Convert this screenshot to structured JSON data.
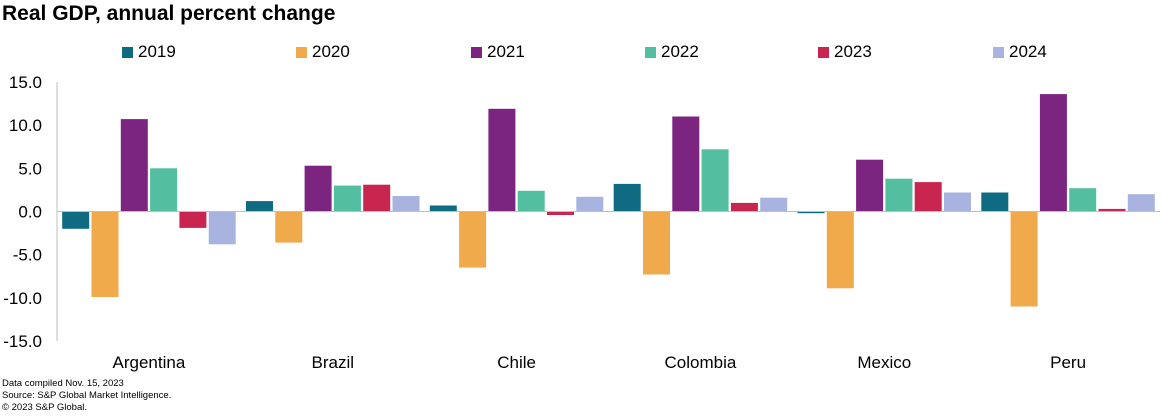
{
  "title": "Real GDP, annual percent change",
  "notes": [
    "Data compiled Nov. 15, 2023",
    "Source: S&P Global Market Intelligence.",
    "© 2023 S&P Global."
  ],
  "chart_data": {
    "type": "bar",
    "title": "Real GDP, annual percent change",
    "categories": [
      "Argentina",
      "Brazil",
      "Chile",
      "Colombia",
      "Mexico",
      "Peru"
    ],
    "ylim": [
      -15,
      15
    ],
    "yticks": [
      15.0,
      10.0,
      5.0,
      0.0,
      -5.0,
      -10.0,
      -15.0
    ],
    "ytick_labels": [
      "15.0",
      "10.0",
      "5.0",
      "0.0",
      "-5.0",
      "-10.0",
      "-15.0"
    ],
    "legend_position": "top",
    "grid": false,
    "series": [
      {
        "name": "2019",
        "color": "#0e6b82",
        "values": [
          -2.0,
          1.2,
          0.7,
          3.2,
          -0.2,
          2.2
        ]
      },
      {
        "name": "2020",
        "color": "#f0a94b",
        "values": [
          -9.9,
          -3.6,
          -6.5,
          -7.3,
          -8.9,
          -11.0
        ]
      },
      {
        "name": "2021",
        "color": "#7b2580",
        "values": [
          10.7,
          5.3,
          11.9,
          11.0,
          6.0,
          13.6
        ]
      },
      {
        "name": "2022",
        "color": "#54bea0",
        "values": [
          5.0,
          3.0,
          2.4,
          7.2,
          3.8,
          2.7
        ]
      },
      {
        "name": "2023",
        "color": "#c8254f",
        "values": [
          -1.9,
          3.1,
          -0.4,
          1.0,
          3.4,
          0.3
        ]
      },
      {
        "name": "2024",
        "color": "#a9b3e0",
        "values": [
          -3.8,
          1.8,
          1.7,
          1.6,
          2.2,
          2.0
        ]
      }
    ]
  }
}
